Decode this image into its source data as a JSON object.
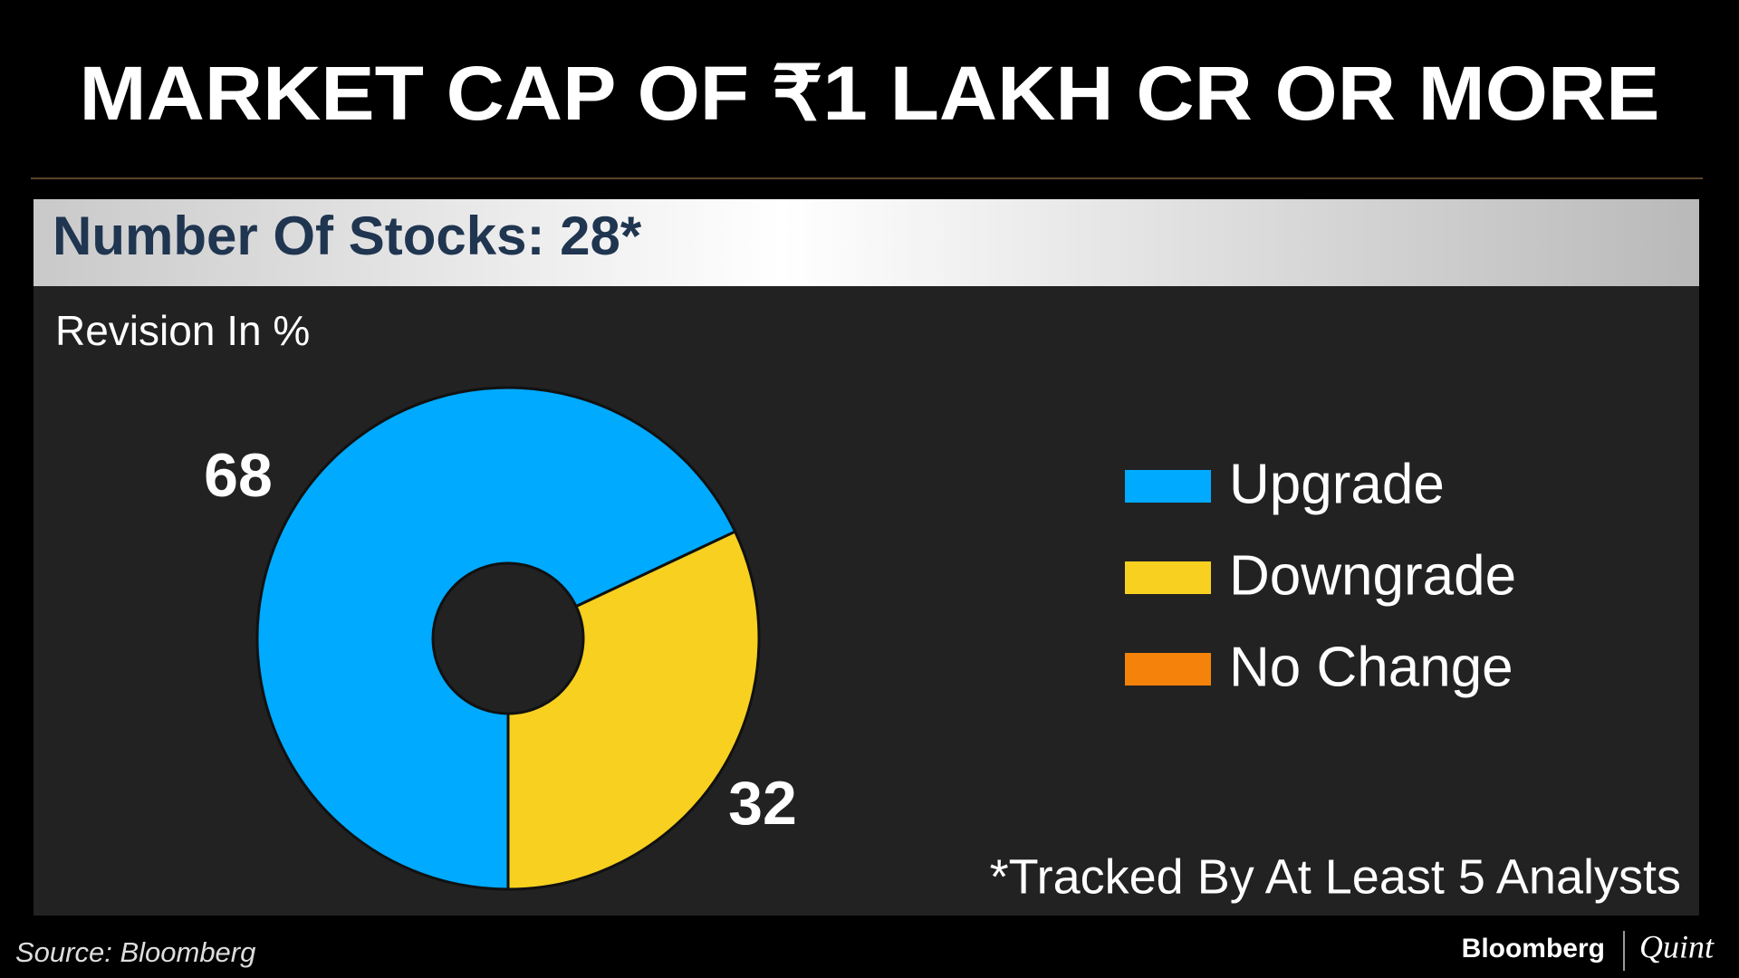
{
  "chart_data": {
    "type": "pie",
    "donut": true,
    "title": "MARKET CAP OF ₹1 LAKH CR OR MORE",
    "subtitle": "Number Of Stocks: 28*",
    "value_axis_label": "Revision In %",
    "annotation": "*Tracked By At Least 5 Analysts",
    "categories": [
      "Upgrade",
      "Downgrade",
      "No Change"
    ],
    "values": [
      68,
      32,
      0
    ],
    "colors": [
      "#00aaff",
      "#f7d020",
      "#f5820a"
    ],
    "legend": "right"
  },
  "source": "Source: Bloomberg",
  "brand": {
    "name": "Bloomberg",
    "partner": "Quint"
  }
}
